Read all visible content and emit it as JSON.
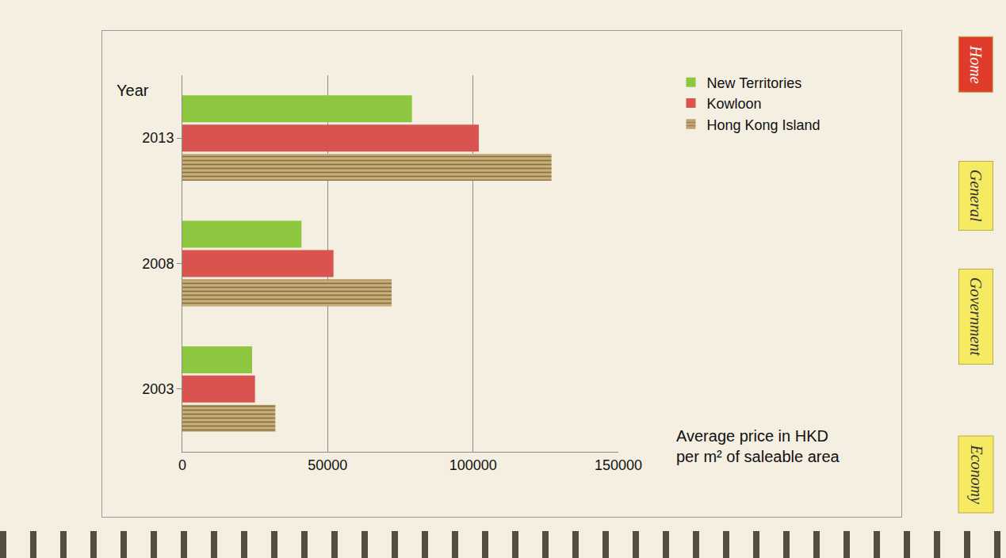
{
  "chart_data": {
    "type": "bar",
    "orientation": "horizontal",
    "y_label": "Year",
    "x_label": "Average price in HKD per m² of saleable area",
    "categories": [
      "2003",
      "2008",
      "2013"
    ],
    "series": [
      {
        "name": "New Territories",
        "color": "#8dc63f",
        "values": [
          24000,
          41000,
          79000
        ]
      },
      {
        "name": "Kowloon",
        "color": "#d9534f",
        "values": [
          25000,
          52000,
          102000
        ]
      },
      {
        "name": "Hong Kong Island",
        "color": "#c8b07a",
        "marker": "striped",
        "values": [
          32000,
          72000,
          127000
        ]
      }
    ],
    "xlim": [
      0,
      150000
    ],
    "xticks": [
      0,
      50000,
      100000,
      150000
    ],
    "grid": true,
    "legend": "right",
    "annotations": [
      "Home",
      "General",
      "Government",
      "Economy"
    ]
  }
}
